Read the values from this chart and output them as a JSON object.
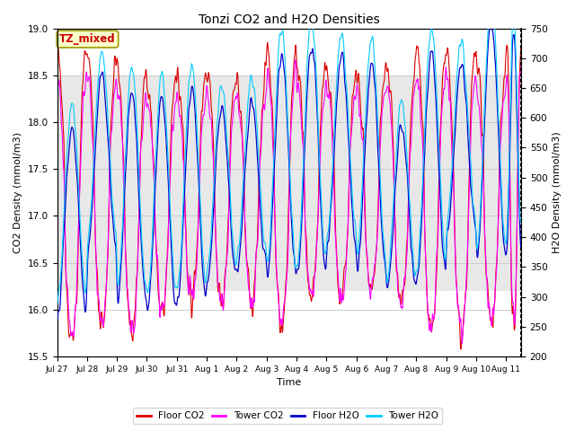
{
  "title": "Tonzi CO2 and H2O Densities",
  "xlabel": "Time",
  "ylabel_left": "CO2 Density (mmol/m3)",
  "ylabel_right": "H2O Density (mmol/m3)",
  "ylim_left": [
    15.5,
    19.0
  ],
  "ylim_right": [
    200,
    750
  ],
  "annotation_text": "TZ_mixed",
  "annotation_color": "#cc0000",
  "annotation_bg": "#ffffcc",
  "annotation_border": "#999900",
  "colors": {
    "floor_co2": "#dd0000",
    "tower_co2": "#ff00ff",
    "floor_h2o": "#0000cc",
    "tower_h2o": "#00ccff"
  },
  "legend_labels": [
    "Floor CO2",
    "Tower CO2",
    "Floor H2O",
    "Tower H2O"
  ],
  "n_days": 15.5,
  "points_per_day": 96,
  "co2_base": 17.25,
  "h2o_base": 475,
  "background_color": "#ffffff",
  "grid_color": "#cccccc",
  "shading_lower": 16.2,
  "shading_upper": 18.5,
  "shading_color": "#e8e8e8",
  "right_ticks": [
    200,
    250,
    300,
    350,
    400,
    450,
    500,
    550,
    600,
    650,
    700,
    750
  ],
  "figsize": [
    6.4,
    4.8
  ],
  "dpi": 100
}
